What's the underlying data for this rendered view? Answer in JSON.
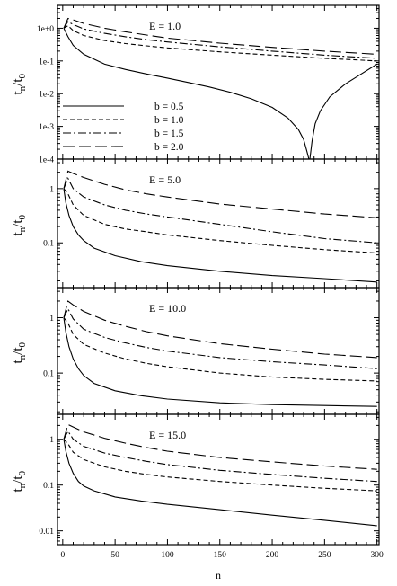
{
  "figure": {
    "xlabel": "n",
    "ylabel_main": "t",
    "ylabel_sub_numerator": "n",
    "ylabel_sub_denominator": "0",
    "x_tick_labels": [
      "0",
      "50",
      "100",
      "150",
      "200",
      "250",
      "300"
    ]
  },
  "chart_data": [
    {
      "type": "line",
      "annotation": "E = 1.0",
      "yscale": "log",
      "xlim": [
        -5,
        302
      ],
      "ylim": [
        0.0001,
        5
      ],
      "y_tick_values": [
        1,
        0.1,
        0.01,
        0.001,
        0.0001
      ],
      "y_tick_labels": [
        "1e+0",
        "1e-1",
        "1e-2",
        "1e-3",
        "1e-4"
      ],
      "legend": {
        "placement": "lower-left",
        "entries": [
          "b = 0.5",
          "b = 1.0",
          "b = 1.5",
          "b = 2.0"
        ]
      },
      "series": [
        {
          "name": "b = 0.5",
          "style": "solid",
          "x": [
            1,
            5,
            10,
            20,
            40,
            60,
            80,
            100,
            120,
            140,
            160,
            180,
            200,
            215,
            225,
            230,
            233,
            235,
            236,
            238,
            241,
            246,
            255,
            270,
            285,
            300
          ],
          "y": [
            1.0,
            0.55,
            0.3,
            0.16,
            0.08,
            0.055,
            0.04,
            0.03,
            0.022,
            0.016,
            0.011,
            0.007,
            0.0038,
            0.0018,
            0.0008,
            0.0004,
            0.00018,
            0.0001,
            0.0001,
            0.00035,
            0.0012,
            0.003,
            0.008,
            0.02,
            0.04,
            0.08
          ]
        },
        {
          "name": "b = 1.0",
          "style": "dashed",
          "x": [
            1,
            5,
            10,
            20,
            40,
            60,
            80,
            100,
            150,
            200,
            250,
            300
          ],
          "y": [
            1.0,
            1.2,
            0.85,
            0.6,
            0.42,
            0.34,
            0.29,
            0.25,
            0.19,
            0.15,
            0.12,
            0.1
          ]
        },
        {
          "name": "b = 1.5",
          "style": "dashdot",
          "x": [
            1,
            5,
            10,
            20,
            40,
            60,
            80,
            100,
            150,
            200,
            250,
            300
          ],
          "y": [
            1.0,
            1.6,
            1.3,
            0.95,
            0.7,
            0.55,
            0.45,
            0.38,
            0.27,
            0.2,
            0.15,
            0.12
          ]
        },
        {
          "name": "b = 2.0",
          "style": "longdash",
          "x": [
            1,
            5,
            10,
            20,
            40,
            60,
            80,
            100,
            150,
            200,
            250,
            300
          ],
          "y": [
            1.0,
            2.0,
            1.8,
            1.4,
            1.0,
            0.78,
            0.62,
            0.5,
            0.35,
            0.26,
            0.2,
            0.16
          ]
        }
      ]
    },
    {
      "type": "line",
      "annotation": "E = 5.0",
      "yscale": "log",
      "xlim": [
        -5,
        302
      ],
      "ylim": [
        0.015,
        3.5
      ],
      "y_tick_values": [
        1,
        0.1
      ],
      "y_tick_labels": [
        "1",
        "0.1"
      ],
      "series": [
        {
          "name": "b = 0.5",
          "style": "solid",
          "x": [
            1,
            3,
            6,
            10,
            15,
            20,
            30,
            50,
            75,
            100,
            150,
            200,
            250,
            300
          ],
          "y": [
            1.0,
            0.55,
            0.32,
            0.2,
            0.14,
            0.11,
            0.08,
            0.058,
            0.045,
            0.038,
            0.03,
            0.025,
            0.022,
            0.019
          ]
        },
        {
          "name": "b = 1.0",
          "style": "dashed",
          "x": [
            1,
            5,
            10,
            20,
            40,
            60,
            80,
            100,
            150,
            200,
            250,
            300
          ],
          "y": [
            1.0,
            0.8,
            0.5,
            0.32,
            0.22,
            0.18,
            0.16,
            0.14,
            0.11,
            0.09,
            0.075,
            0.065
          ]
        },
        {
          "name": "b = 1.5",
          "style": "dashdot",
          "x": [
            1,
            5,
            10,
            20,
            40,
            60,
            80,
            100,
            150,
            200,
            250,
            300
          ],
          "y": [
            1.0,
            1.55,
            1.0,
            0.7,
            0.5,
            0.4,
            0.34,
            0.3,
            0.22,
            0.16,
            0.12,
            0.1
          ]
        },
        {
          "name": "b = 2.0",
          "style": "longdash",
          "x": [
            1,
            5,
            10,
            20,
            40,
            60,
            80,
            100,
            150,
            200,
            250,
            300
          ],
          "y": [
            1.0,
            2.1,
            1.9,
            1.6,
            1.2,
            0.95,
            0.8,
            0.7,
            0.52,
            0.42,
            0.34,
            0.29
          ]
        }
      ]
    },
    {
      "type": "line",
      "annotation": "E = 10.0",
      "yscale": "log",
      "xlim": [
        -5,
        302
      ],
      "ylim": [
        0.018,
        3.5
      ],
      "y_tick_values": [
        1,
        0.1
      ],
      "y_tick_labels": [
        "1",
        "0.1"
      ],
      "series": [
        {
          "name": "b = 0.5",
          "style": "solid",
          "x": [
            1,
            3,
            6,
            10,
            15,
            20,
            30,
            50,
            75,
            100,
            150,
            200,
            250,
            300
          ],
          "y": [
            1.0,
            0.55,
            0.3,
            0.18,
            0.12,
            0.09,
            0.065,
            0.048,
            0.039,
            0.034,
            0.029,
            0.027,
            0.026,
            0.025
          ]
        },
        {
          "name": "b = 1.0",
          "style": "dashed",
          "x": [
            1,
            5,
            10,
            20,
            40,
            60,
            80,
            100,
            150,
            200,
            250,
            300
          ],
          "y": [
            1.0,
            0.8,
            0.5,
            0.33,
            0.23,
            0.18,
            0.15,
            0.13,
            0.1,
            0.085,
            0.077,
            0.072
          ]
        },
        {
          "name": "b = 1.5",
          "style": "dashdot",
          "x": [
            1,
            5,
            10,
            20,
            40,
            60,
            80,
            100,
            150,
            200,
            250,
            300
          ],
          "y": [
            1.0,
            1.45,
            0.95,
            0.62,
            0.44,
            0.35,
            0.29,
            0.25,
            0.19,
            0.16,
            0.14,
            0.12
          ]
        },
        {
          "name": "b = 2.0",
          "style": "longdash",
          "x": [
            1,
            5,
            10,
            20,
            40,
            60,
            80,
            100,
            150,
            200,
            250,
            300
          ],
          "y": [
            1.0,
            2.0,
            1.7,
            1.3,
            0.9,
            0.7,
            0.56,
            0.47,
            0.34,
            0.27,
            0.22,
            0.19
          ]
        }
      ]
    },
    {
      "type": "line",
      "annotation": "E = 15.0",
      "yscale": "log",
      "xlim": [
        -5,
        302
      ],
      "ylim": [
        0.005,
        3.5
      ],
      "y_tick_values": [
        1,
        0.1,
        0.01
      ],
      "y_tick_labels": [
        "1",
        "0.1",
        "0.01"
      ],
      "series": [
        {
          "name": "b = 0.5",
          "style": "solid",
          "x": [
            1,
            3,
            6,
            10,
            15,
            20,
            30,
            50,
            75,
            100,
            150,
            200,
            250,
            300
          ],
          "y": [
            1.0,
            0.55,
            0.3,
            0.18,
            0.12,
            0.095,
            0.075,
            0.055,
            0.045,
            0.038,
            0.029,
            0.022,
            0.017,
            0.013
          ]
        },
        {
          "name": "b = 1.0",
          "style": "dashed",
          "x": [
            1,
            5,
            10,
            20,
            40,
            60,
            80,
            100,
            150,
            200,
            250,
            300
          ],
          "y": [
            1.0,
            0.8,
            0.52,
            0.36,
            0.25,
            0.2,
            0.17,
            0.15,
            0.12,
            0.1,
            0.085,
            0.075
          ]
        },
        {
          "name": "b = 1.5",
          "style": "dashdot",
          "x": [
            1,
            5,
            10,
            20,
            40,
            60,
            80,
            100,
            150,
            200,
            250,
            300
          ],
          "y": [
            1.0,
            1.5,
            1.0,
            0.7,
            0.5,
            0.4,
            0.33,
            0.28,
            0.21,
            0.17,
            0.14,
            0.12
          ]
        },
        {
          "name": "b = 2.0",
          "style": "longdash",
          "x": [
            1,
            5,
            10,
            20,
            40,
            60,
            80,
            100,
            150,
            200,
            250,
            300
          ],
          "y": [
            1.0,
            2.1,
            1.85,
            1.45,
            1.05,
            0.82,
            0.66,
            0.55,
            0.4,
            0.32,
            0.26,
            0.22
          ]
        }
      ]
    }
  ]
}
